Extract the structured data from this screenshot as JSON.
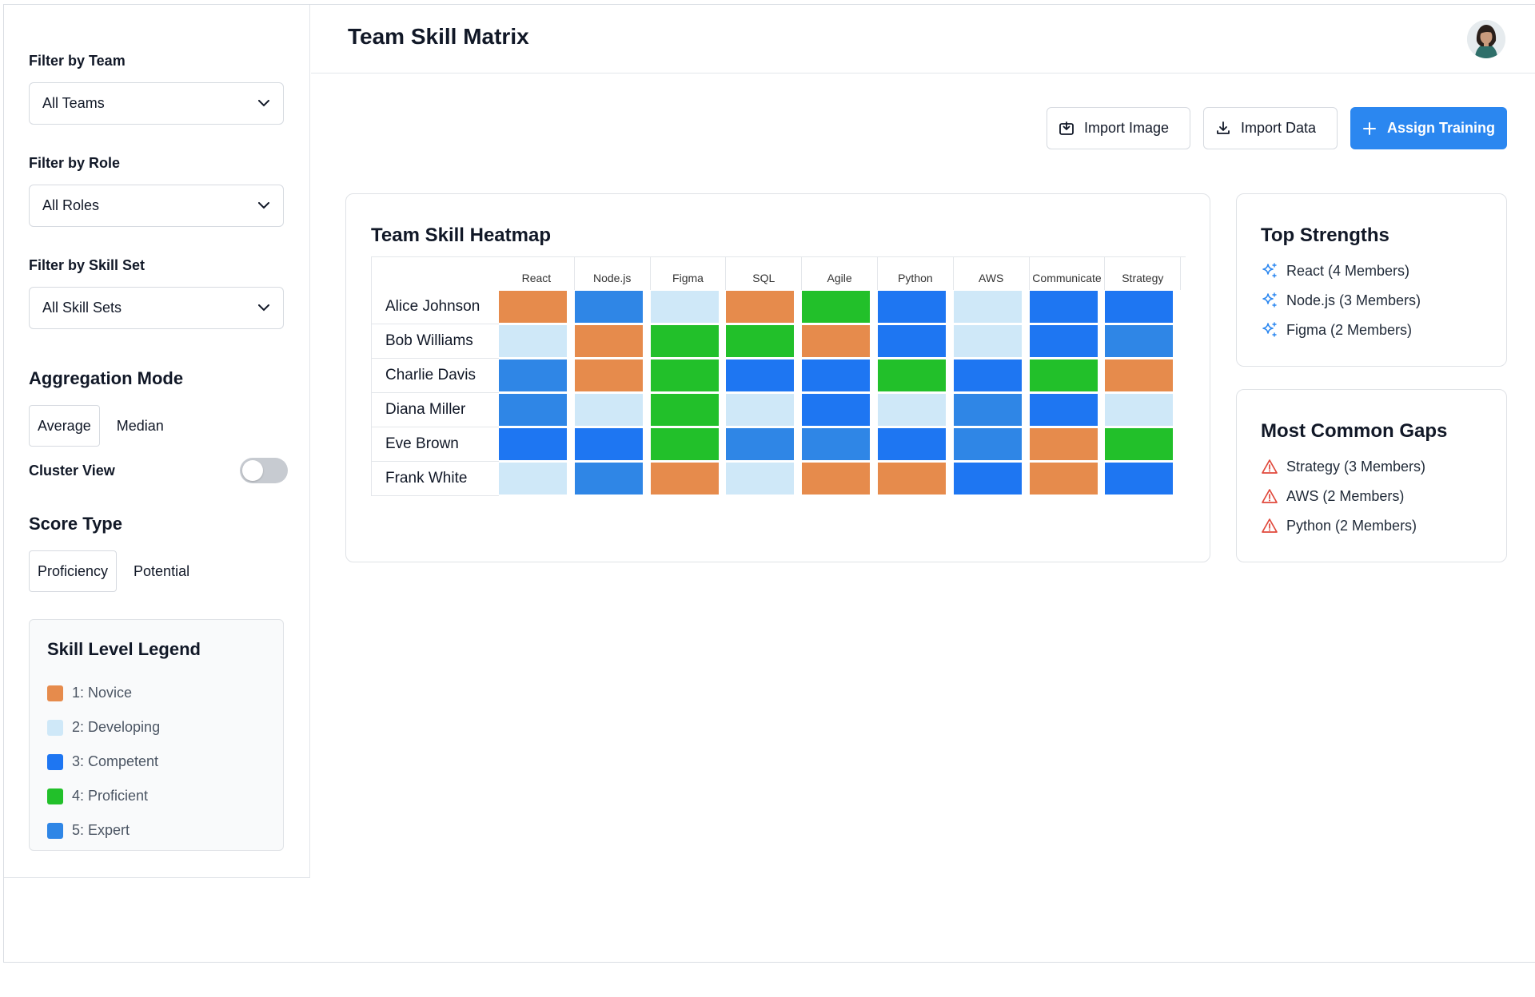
{
  "header": {
    "title": "Team Skill Matrix"
  },
  "filters": [
    {
      "label": "Filter by Team",
      "value": "All Teams"
    },
    {
      "label": "Filter by Role",
      "value": "All Roles"
    },
    {
      "label": "Filter by Skill Set",
      "value": "All Skill Sets"
    }
  ],
  "aggregation": {
    "title": "Aggregation Mode",
    "options": [
      "Average",
      "Median"
    ],
    "selected": "Average"
  },
  "cluster_view": {
    "label": "Cluster View",
    "enabled": false
  },
  "score_type": {
    "title": "Score Type",
    "options": [
      "Proficiency",
      "Potential"
    ],
    "selected": "Proficiency"
  },
  "legend": {
    "title": "Skill Level Legend",
    "items": [
      {
        "label": "1: Novice",
        "color": "#e68b4c"
      },
      {
        "label": "2: Developing",
        "color": "#cfe8f8"
      },
      {
        "label": "3: Competent",
        "color": "#1e76f2"
      },
      {
        "label": "4: Proficient",
        "color": "#22c02a"
      },
      {
        "label": "5: Expert",
        "color": "#2f86e6"
      }
    ]
  },
  "toolbar": {
    "import_image": "Import Image",
    "import_data": "Import Data",
    "assign_training": "Assign Training"
  },
  "heatmap": {
    "title": "Team Skill Heatmap",
    "skills": [
      "React",
      "Node.js",
      "Figma",
      "SQL",
      "Agile",
      "Python",
      "AWS",
      "Communicate",
      "Strategy"
    ],
    "members": [
      "Alice Johnson",
      "Bob Williams",
      "Charlie Davis",
      "Diana Miller",
      "Eve Brown",
      "Frank White"
    ],
    "levels": [
      [
        1,
        5,
        2,
        1,
        4,
        3,
        2,
        3,
        3
      ],
      [
        2,
        1,
        4,
        4,
        1,
        3,
        2,
        3,
        5
      ],
      [
        5,
        1,
        4,
        3,
        3,
        4,
        3,
        4,
        1
      ],
      [
        5,
        2,
        4,
        2,
        3,
        2,
        5,
        3,
        2
      ],
      [
        3,
        3,
        4,
        5,
        5,
        3,
        5,
        1,
        4
      ],
      [
        2,
        5,
        1,
        2,
        1,
        1,
        3,
        1,
        3
      ]
    ]
  },
  "top_strengths": {
    "title": "Top Strengths",
    "items": [
      "React (4 Members)",
      "Node.js (3 Members)",
      "Figma (2 Members)"
    ]
  },
  "common_gaps": {
    "title": "Most Common Gaps",
    "items": [
      "Strategy (3 Members)",
      "AWS (2 Members)",
      "Python (2 Members)"
    ]
  },
  "colors": {
    "accent": "#2b87f0",
    "strength_icon": "#2b87f0",
    "gap_icon": "#e0483b"
  },
  "icons": {
    "select": "chevron-down-icon",
    "import_image": "image-import-icon",
    "import_data": "download-icon",
    "assign_training": "plus-icon",
    "strength": "sparkle-icon",
    "gap": "warning-icon"
  }
}
